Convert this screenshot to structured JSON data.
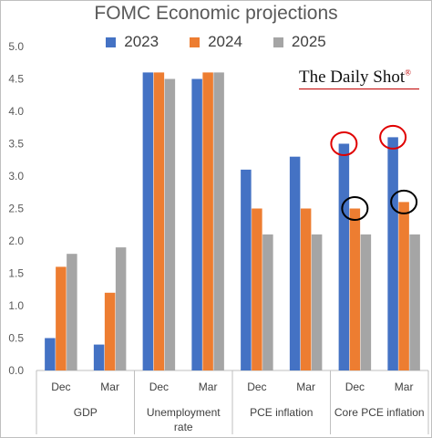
{
  "chart_data": {
    "type": "bar",
    "title": "FOMC Economic projections",
    "watermark": "The Daily Shot",
    "ylim": [
      0,
      5.0
    ],
    "yticks": [
      "0.0",
      "0.5",
      "1.0",
      "1.5",
      "2.0",
      "2.5",
      "3.0",
      "3.5",
      "4.0",
      "4.5",
      "5.0"
    ],
    "categories": [
      "Dec",
      "Mar",
      "Dec",
      "Mar",
      "Dec",
      "Mar",
      "Dec",
      "Mar"
    ],
    "groups": [
      "GDP",
      "Unemployment rate",
      "PCE inflation",
      "Core PCE inflation"
    ],
    "series": [
      {
        "name": "2023",
        "color": "#4472c4",
        "values": [
          0.5,
          0.4,
          4.6,
          4.5,
          3.1,
          3.3,
          3.5,
          3.6
        ]
      },
      {
        "name": "2024",
        "color": "#ed7d31",
        "values": [
          1.6,
          1.2,
          4.6,
          4.6,
          2.5,
          2.5,
          2.5,
          2.6
        ]
      },
      {
        "name": "2025",
        "color": "#a5a5a5",
        "values": [
          1.8,
          1.9,
          4.5,
          4.6,
          2.1,
          2.1,
          2.1,
          2.1
        ]
      }
    ],
    "highlights": [
      {
        "series": "2023",
        "category_index": 6,
        "color": "#e00000"
      },
      {
        "series": "2023",
        "category_index": 7,
        "color": "#e00000"
      },
      {
        "series": "2024",
        "category_index": 6,
        "color": "#000000"
      },
      {
        "series": "2024",
        "category_index": 7,
        "color": "#000000"
      }
    ]
  }
}
